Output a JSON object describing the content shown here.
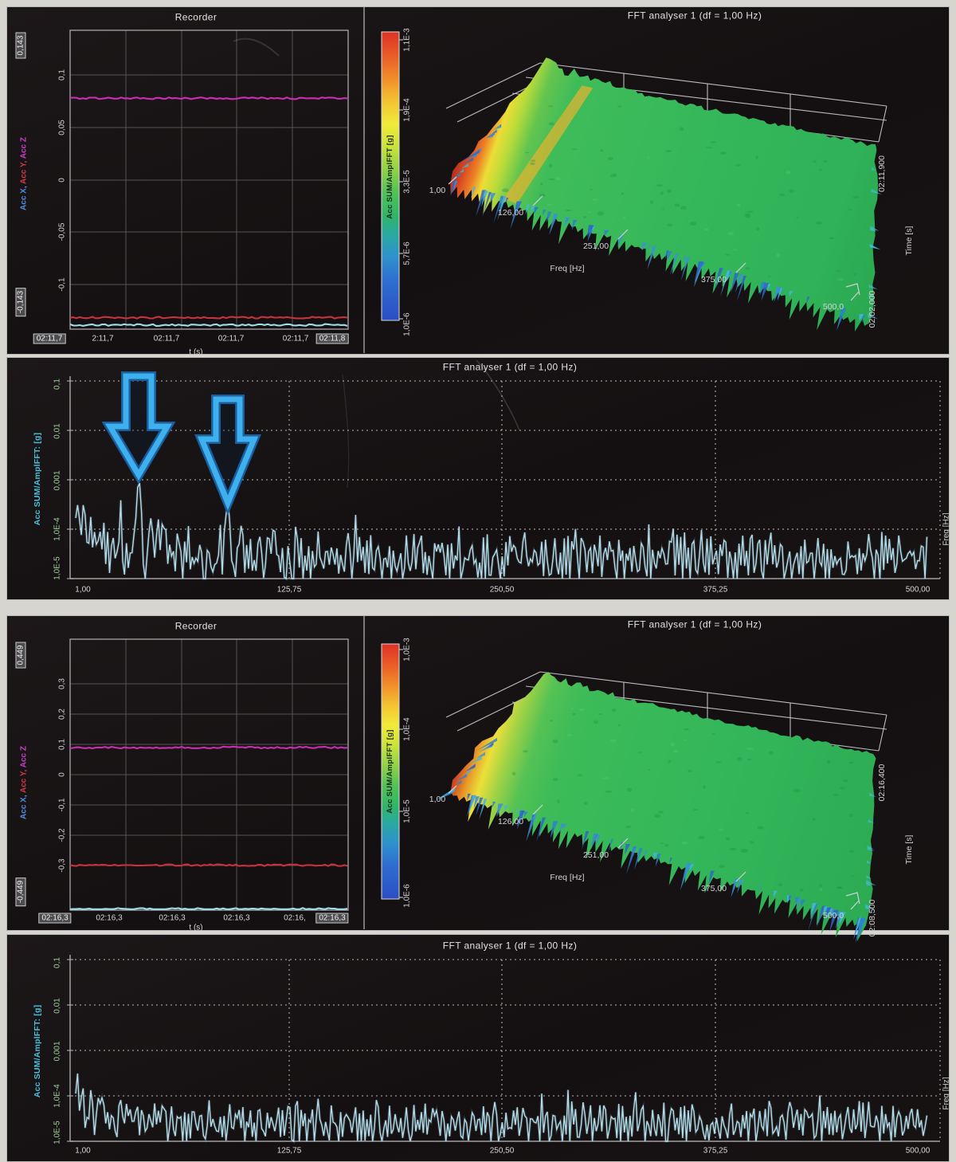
{
  "recorder_top": {
    "title": "Recorder",
    "channel_x": "Acc X,",
    "channel_y": " Acc Y,",
    "channel_z": " Acc Z",
    "y_max_box": "0,143",
    "y_min_box": "-0,143",
    "y_ticks": [
      "0,1",
      "0,05",
      "0",
      "-0,05",
      "-0,1"
    ],
    "x_ticks": [
      "02:11,7",
      "2:11,7",
      "02:11,7",
      "02:11,7",
      "02:11,7",
      "02:11,8"
    ],
    "x_label": "t (s)"
  },
  "colorbar_top": {
    "label": "Acc SUM/AmplFFT [g]",
    "ticks": [
      "1,1E-3",
      "1,9E-4",
      "3,3E-5",
      "5,7E-6",
      "1,0E-6"
    ]
  },
  "fft3d_top": {
    "title": "FFT analyser 1 (df = 1,00 Hz)",
    "freq_ticks": [
      "1,00",
      "126,00",
      "251,00",
      "375,00",
      "500,0"
    ],
    "freq_label": "Freq [Hz]",
    "time_end": "02:11,900",
    "time_label": "Time [s]",
    "time_start": "02:02,000"
  },
  "fft2d_mid": {
    "title": "FFT analyser 1 (df = 1,00 Hz)",
    "y_label": "Acc SUM/AmplFFT: [g]",
    "y_ticks": [
      "0,1",
      "0,01",
      "0,001",
      "1,0E-4",
      "1,0E-5"
    ],
    "x_ticks": [
      "1,00",
      "125,75",
      "250,50",
      "375,25",
      "500,00"
    ],
    "freq_label": "Freq [Hz]"
  },
  "recorder_bottom": {
    "title": "Recorder",
    "channel_x": "Acc X,",
    "channel_y": " Acc Y,",
    "channel_z": " Acc Z",
    "y_max_box": "0,449",
    "y_min_box": "-0,449",
    "y_ticks": [
      "0,3",
      "0,2",
      "0,1",
      "0",
      "-0,1",
      "-0,2",
      "-0,3"
    ],
    "x_ticks": [
      "02:16,3",
      "02:16,3",
      "02:16,3",
      "02:16,3",
      "02:16,",
      "02:16,3"
    ],
    "x_label": "t (s)"
  },
  "colorbar_bottom": {
    "label": "Acc SUM/AmplFFT [g]",
    "ticks": [
      "1,0E-3",
      "1,0E-4",
      "1,0E-5",
      "1,0E-6"
    ]
  },
  "fft3d_bottom": {
    "title": "FFT analyser 1 (df = 1,00 Hz)",
    "freq_ticks": [
      "1,00",
      "126,00",
      "251,00",
      "375,00",
      "500,0"
    ],
    "freq_label": "Freq [Hz]",
    "time_end": "02:16,400",
    "time_label": "Time [s]",
    "time_start": "02:08,500"
  },
  "fft2d_bottom": {
    "title": "FFT analyser 1 (df = 1,00 Hz)",
    "y_label": "Acc SUM/AmplFFT: [g]",
    "y_ticks": [
      "0,1",
      "0,01",
      "0,001",
      "1,0E-4",
      "1,0E-5"
    ],
    "x_ticks": [
      "1,00",
      "125,75",
      "250,50",
      "375,25",
      "500,00"
    ],
    "freq_label": "Freq [Hz]"
  },
  "colors": {
    "acc_x_label": "#4f8fe6",
    "acc_y_label": "#d23a44",
    "acc_z_label": "#c93ecb",
    "trace_x": "#9fdcea",
    "trace_y": "#c8323e",
    "trace_z": "#cb2eb4",
    "fft_trace": "#b9e6f4",
    "arrow_blue": "#3aa7e8"
  },
  "chart_data": [
    {
      "id": "recorder_top",
      "type": "line",
      "title": "Recorder",
      "x_label": "t (s)",
      "x_start": "02:11,7",
      "x_end": "02:11,8",
      "ylim": [
        -0.143,
        0.143
      ],
      "series": [
        {
          "name": "Acc X",
          "color": "#9fdcea",
          "value": -0.139
        },
        {
          "name": "Acc Y",
          "color": "#c8323e",
          "value": -0.132
        },
        {
          "name": "Acc Z",
          "color": "#cb2eb4",
          "value": 0.078
        }
      ]
    },
    {
      "id": "fft3d_top",
      "type": "heatmap",
      "subtype": "waterfall_3d",
      "title": "FFT analyser 1 (df = 1,00 Hz)",
      "freq_axis": {
        "label": "Freq [Hz]",
        "ticks": [
          1,
          126,
          251,
          375,
          500
        ]
      },
      "time_axis": {
        "label": "Time [s]",
        "start": "02:02,000",
        "end": "02:11,900"
      },
      "color_axis": {
        "label": "Acc SUM/AmplFFT [g]",
        "ticks": [
          "1,1E-3",
          "1,9E-4",
          "3,3E-5",
          "5,7E-6",
          "1,0E-6"
        ]
      },
      "ridges_hz": [
        38,
        90
      ],
      "seed": 11
    },
    {
      "id": "fft2d_mid",
      "type": "line",
      "subtype": "log_spectrum",
      "title": "FFT analyser 1 (df = 1,00 Hz)",
      "xlabel": "Freq [Hz]",
      "ylabel": "Acc SUM/AmplFFT: [g]",
      "xlim": [
        1,
        500
      ],
      "ylim_log": [
        -5,
        -1
      ],
      "x_ticks": [
        1,
        125.75,
        250.5,
        375.25,
        500
      ],
      "y_ticks": [
        0.1,
        0.01,
        0.001,
        0.0001,
        1e-05
      ],
      "peaks": [
        {
          "f": 2.5,
          "log": -3.5,
          "w": 1.3
        },
        {
          "f": 6,
          "log": -3.62,
          "w": 1.7
        },
        {
          "f": 38,
          "log": -3.02,
          "w": 1.9
        },
        {
          "f": 45,
          "log": -3.78,
          "w": 2.0
        },
        {
          "f": 52,
          "log": -3.86,
          "w": 2.0
        },
        {
          "f": 90,
          "log": -3.38,
          "w": 1.7
        },
        {
          "f": 98,
          "log": -3.92,
          "w": 2.0
        },
        {
          "f": 117,
          "log": -3.97,
          "w": 2.2
        }
      ],
      "floor_log": -4.62,
      "osc": 0.33,
      "jitter": 0.55,
      "low_boost": 0.9,
      "low_tau": 14,
      "spike_p": 0.22,
      "spike_a": 0.55,
      "seed": 42,
      "annotated_peaks_hz": [
        38,
        90
      ]
    },
    {
      "id": "recorder_bottom",
      "type": "line",
      "title": "Recorder",
      "x_label": "t (s)",
      "x_start": "02:16,3",
      "x_end": "02:16,3",
      "ylim": [
        -0.449,
        0.449
      ],
      "series": [
        {
          "name": "Acc X",
          "color": "#9fdcea",
          "value": -0.445
        },
        {
          "name": "Acc Y",
          "color": "#c8323e",
          "value": -0.3
        },
        {
          "name": "Acc Z",
          "color": "#cb2eb4",
          "value": 0.09
        }
      ]
    },
    {
      "id": "fft3d_bottom",
      "type": "heatmap",
      "subtype": "waterfall_3d",
      "title": "FFT analyser 1 (df = 1,00 Hz)",
      "freq_axis": {
        "label": "Freq [Hz]",
        "ticks": [
          1,
          126,
          251,
          375,
          500
        ]
      },
      "time_axis": {
        "label": "Time [s]",
        "start": "02:08,500",
        "end": "02:16,400"
      },
      "color_axis": {
        "label": "Acc SUM/AmplFFT [g]",
        "ticks": [
          "1,0E-3",
          "1,0E-4",
          "1,0E-5",
          "1,0E-6"
        ]
      },
      "ridges_hz": [
        25
      ],
      "seed": 23
    },
    {
      "id": "fft2d_bottom",
      "type": "line",
      "subtype": "log_spectrum",
      "title": "FFT analyser 1 (df = 1,00 Hz)",
      "xlabel": "Freq [Hz]",
      "ylabel": "Acc SUM/AmplFFT: [g]",
      "xlim": [
        1,
        500
      ],
      "ylim_log": [
        -5,
        -1
      ],
      "x_ticks": [
        1,
        125.75,
        250.5,
        375.25,
        500
      ],
      "y_ticks": [
        0.1,
        0.01,
        0.001,
        0.0001,
        1e-05
      ],
      "peaks": [
        {
          "f": 2.2,
          "log": -3.5,
          "w": 1.1
        },
        {
          "f": 5,
          "log": -3.74,
          "w": 1.3
        },
        {
          "f": 10,
          "log": -3.86,
          "w": 1.6
        },
        {
          "f": 16,
          "log": -3.98,
          "w": 1.6
        }
      ],
      "floor_log": -4.65,
      "osc": 0.3,
      "jitter": 0.5,
      "low_boost": 0.55,
      "low_tau": 10,
      "spike_p": 0.2,
      "spike_a": 0.5,
      "seed": 7,
      "annotated_peaks_hz": []
    }
  ]
}
